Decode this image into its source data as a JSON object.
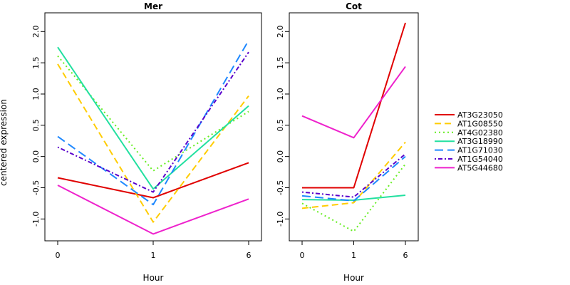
{
  "chart_data": [
    {
      "type": "line",
      "title": "Mer",
      "xlabel": "Hour",
      "ylabel": "centered expression",
      "x": [
        "0",
        "1",
        "6"
      ],
      "ylim": [
        -1.35,
        2.3
      ],
      "yticks": [
        "-1.0",
        "-0.5",
        "0.0",
        "0.5",
        "1.0",
        "1.5",
        "2.0"
      ],
      "series": [
        {
          "name": "AT3G23050",
          "values": [
            -0.34,
            -0.66,
            -0.1
          ],
          "color": "#e00000",
          "dash": "solid"
        },
        {
          "name": "AT1G08550",
          "values": [
            1.48,
            -1.05,
            0.97
          ],
          "color": "#ffcc00",
          "dash": "dashed"
        },
        {
          "name": "AT4G02380",
          "values": [
            1.61,
            -0.23,
            0.72
          ],
          "color": "#66ee22",
          "dash": "dotted"
        },
        {
          "name": "AT3G18990",
          "values": [
            1.75,
            -0.52,
            0.81
          ],
          "color": "#22e0a0",
          "dash": "solid"
        },
        {
          "name": "AT1G71030",
          "values": [
            0.32,
            -0.77,
            1.86
          ],
          "color": "#1e88ff",
          "dash": "longdash"
        },
        {
          "name": "AT1G54040",
          "values": [
            0.15,
            -0.57,
            1.67
          ],
          "color": "#5a00cc",
          "dash": "dotdash"
        },
        {
          "name": "AT5G44680",
          "values": [
            -0.46,
            -1.24,
            -0.68
          ],
          "color": "#ee22cc",
          "dash": "solid"
        }
      ]
    },
    {
      "type": "line",
      "title": "Cot",
      "xlabel": "Hour",
      "ylabel": "",
      "x": [
        "0",
        "1",
        "6"
      ],
      "ylim": [
        -1.35,
        2.3
      ],
      "yticks": [
        "-1.0",
        "-0.5",
        "0.0",
        "0.5",
        "1.0",
        "1.5",
        "2.0"
      ],
      "series": [
        {
          "name": "AT3G23050",
          "values": [
            -0.5,
            -0.5,
            2.14
          ],
          "color": "#e00000",
          "dash": "solid"
        },
        {
          "name": "AT1G08550",
          "values": [
            -0.83,
            -0.74,
            0.23
          ],
          "color": "#ffcc00",
          "dash": "dashed"
        },
        {
          "name": "AT4G02380",
          "values": [
            -0.75,
            -1.2,
            -0.12
          ],
          "color": "#66ee22",
          "dash": "dotted"
        },
        {
          "name": "AT3G18990",
          "values": [
            -0.69,
            -0.7,
            -0.62
          ],
          "color": "#22e0a0",
          "dash": "solid"
        },
        {
          "name": "AT1G71030",
          "values": [
            -0.63,
            -0.71,
            0.0
          ],
          "color": "#1e88ff",
          "dash": "longdash"
        },
        {
          "name": "AT1G54040",
          "values": [
            -0.57,
            -0.65,
            0.04
          ],
          "color": "#5a00cc",
          "dash": "dotdash"
        },
        {
          "name": "AT5G44680",
          "values": [
            0.65,
            0.3,
            1.44
          ],
          "color": "#ee22cc",
          "dash": "solid"
        }
      ]
    }
  ],
  "legend": {
    "placement": "right",
    "items": [
      {
        "label": "AT3G23050",
        "color": "#e00000",
        "dash": "solid"
      },
      {
        "label": "AT1G08550",
        "color": "#ffcc00",
        "dash": "dashed"
      },
      {
        "label": "AT4G02380",
        "color": "#66ee22",
        "dash": "dotted"
      },
      {
        "label": "AT3G18990",
        "color": "#22e0a0",
        "dash": "solid"
      },
      {
        "label": "AT1G71030",
        "color": "#1e88ff",
        "dash": "longdash"
      },
      {
        "label": "AT1G54040",
        "color": "#5a00cc",
        "dash": "dotdash"
      },
      {
        "label": "AT5G44680",
        "color": "#ee22cc",
        "dash": "solid"
      }
    ]
  }
}
